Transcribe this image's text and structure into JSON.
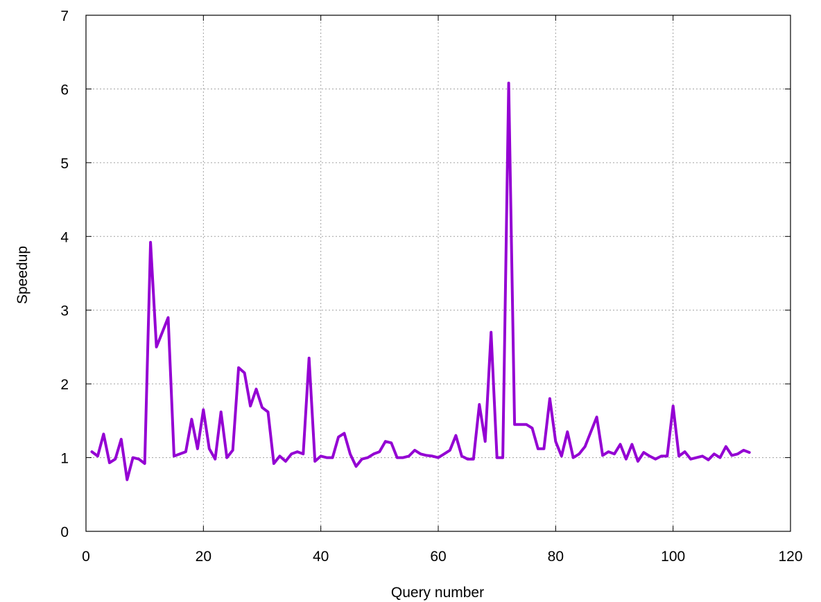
{
  "chart_data": {
    "type": "line",
    "title": "",
    "xlabel": "Query number",
    "ylabel": "Speedup",
    "xlim": [
      0,
      120
    ],
    "ylim": [
      0,
      7
    ],
    "xticks": [
      0,
      20,
      40,
      60,
      80,
      100,
      120
    ],
    "yticks": [
      0,
      1,
      2,
      3,
      4,
      5,
      6,
      7
    ],
    "grid": true,
    "legend": "none",
    "line_color": "#9400d3",
    "series": [
      {
        "x": [
          1,
          2,
          3,
          4,
          5,
          6,
          7,
          8,
          9,
          10,
          11,
          12,
          13,
          14,
          15,
          16,
          17,
          18,
          19,
          20,
          21,
          22,
          23,
          24,
          25,
          26,
          27,
          28,
          29,
          30,
          31,
          32,
          33,
          34,
          35,
          36,
          37,
          38,
          39,
          40,
          41,
          42,
          43,
          44,
          45,
          46,
          47,
          48,
          49,
          50,
          51,
          52,
          53,
          54,
          55,
          56,
          57,
          58,
          59,
          60,
          61,
          62,
          63,
          64,
          65,
          66,
          67,
          68,
          69,
          70,
          71,
          72,
          73,
          74,
          75,
          76,
          77,
          78,
          79,
          80,
          81,
          82,
          83,
          84,
          85,
          86,
          87,
          88,
          89,
          90,
          91,
          92,
          93,
          94,
          95,
          96,
          97,
          98,
          99,
          100,
          101,
          102,
          103,
          104,
          105,
          106,
          107,
          108,
          109,
          110,
          111,
          112,
          113
        ],
        "values": [
          1.08,
          1.02,
          1.32,
          0.93,
          0.98,
          1.25,
          0.7,
          1.0,
          0.98,
          0.92,
          3.92,
          2.5,
          2.7,
          2.9,
          1.02,
          1.05,
          1.08,
          1.52,
          1.12,
          1.65,
          1.12,
          0.98,
          1.62,
          1.0,
          1.1,
          2.22,
          2.15,
          1.7,
          1.93,
          1.68,
          1.62,
          0.92,
          1.02,
          0.95,
          1.05,
          1.08,
          1.05,
          2.35,
          0.95,
          1.02,
          1.0,
          1.0,
          1.28,
          1.33,
          1.05,
          0.88,
          0.98,
          1.0,
          1.05,
          1.08,
          1.22,
          1.2,
          1.0,
          1.0,
          1.02,
          1.1,
          1.05,
          1.03,
          1.02,
          1.0,
          1.05,
          1.1,
          1.3,
          1.02,
          0.98,
          0.98,
          1.72,
          1.22,
          2.7,
          1.0,
          1.0,
          6.08,
          1.45,
          1.45,
          1.45,
          1.4,
          1.12,
          1.12,
          1.8,
          1.22,
          1.02,
          1.35,
          1.0,
          1.05,
          1.15,
          1.35,
          1.55,
          1.03,
          1.08,
          1.05,
          1.18,
          0.98,
          1.18,
          0.95,
          1.07,
          1.02,
          0.98,
          1.02,
          1.02,
          1.7,
          1.02,
          1.08,
          0.98,
          1.0,
          1.02,
          0.97,
          1.05,
          1.0,
          1.15,
          1.03,
          1.05,
          1.1,
          1.07
        ]
      }
    ]
  }
}
